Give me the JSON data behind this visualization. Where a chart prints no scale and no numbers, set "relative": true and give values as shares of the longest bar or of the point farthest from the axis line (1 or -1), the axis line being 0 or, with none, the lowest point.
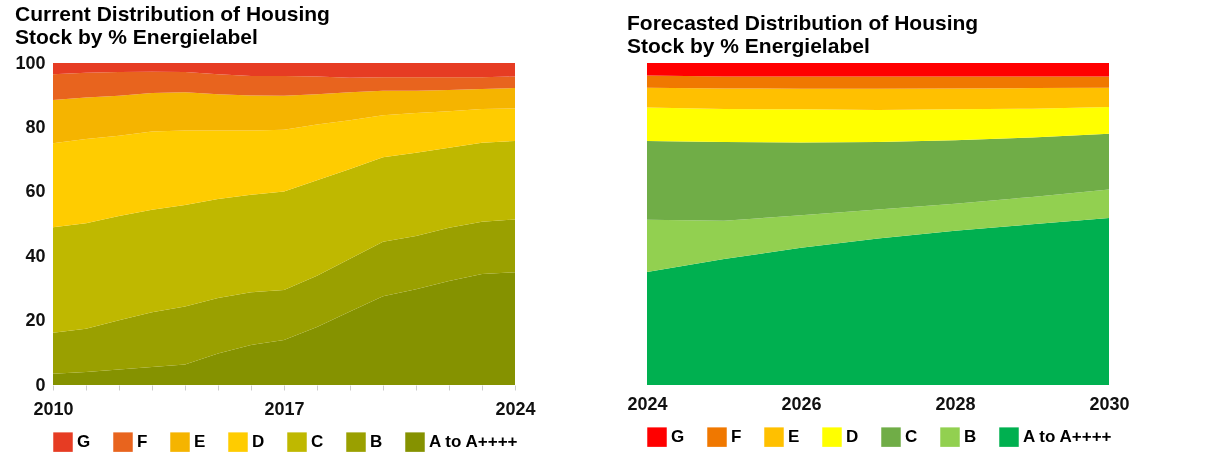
{
  "chart_data": [
    {
      "type": "area",
      "stacked": true,
      "title": "Current Distribution of Housing\nStock by % Energielabel",
      "legend": "bottom",
      "grid": false,
      "x": [
        2010,
        2011,
        2012,
        2013,
        2014,
        2015,
        2016,
        2017,
        2018,
        2019,
        2020,
        2021,
        2022,
        2023,
        2024
      ],
      "xlim": [
        2010,
        2024
      ],
      "xticks": [
        2010,
        {
          "value": 2011,
          "label": null
        },
        {
          "value": 2012,
          "label": null
        },
        {
          "value": 2013,
          "label": null
        },
        {
          "value": 2014,
          "label": null
        },
        {
          "value": 2015,
          "label": null
        },
        {
          "value": 2016,
          "label": null
        },
        2017,
        {
          "value": 2018,
          "label": null
        },
        {
          "value": 2019,
          "label": null
        },
        {
          "value": 2020,
          "label": null
        },
        {
          "value": 2021,
          "label": null
        },
        {
          "value": 2022,
          "label": null
        },
        {
          "value": 2023,
          "label": null
        },
        2024
      ],
      "ylim": [
        0,
        100
      ],
      "yticks": [
        0,
        20,
        40,
        60,
        80,
        100
      ],
      "series": [
        {
          "name": "A to A++++",
          "color": "#859200",
          "values": [
            3.5,
            4.0,
            4.8,
            5.6,
            6.4,
            9.8,
            12.4,
            14.0,
            18.0,
            22.8,
            27.6,
            29.7,
            32.3,
            34.5,
            35.0
          ]
        },
        {
          "name": "B",
          "color": "#9aa000",
          "values": [
            12.7,
            13.5,
            15.3,
            17.0,
            18.0,
            17.2,
            16.4,
            15.5,
            15.9,
            16.4,
            16.9,
            16.6,
            16.5,
            16.2,
            16.4
          ]
        },
        {
          "name": "C",
          "color": "#bfb800",
          "values": [
            32.8,
            32.7,
            32.4,
            31.8,
            31.5,
            30.8,
            30.3,
            30.6,
            29.7,
            27.9,
            26.2,
            25.8,
            24.9,
            24.5,
            24.4
          ]
        },
        {
          "name": "D",
          "color": "#ffcc00",
          "values": [
            26.1,
            26.2,
            24.9,
            24.3,
            23.1,
            21.2,
            19.9,
            19.2,
            17.3,
            15.1,
            13.1,
            12.4,
            11.3,
            10.5,
            10.1
          ]
        },
        {
          "name": "E",
          "color": "#f5b400",
          "values": [
            13.4,
            12.9,
            12.4,
            12.0,
            11.9,
            11.3,
            10.9,
            10.5,
            9.4,
            8.7,
            7.6,
            6.9,
            6.6,
            6.2,
            6.3
          ]
        },
        {
          "name": "F",
          "color": "#e8641e",
          "values": [
            8.0,
            7.7,
            7.4,
            6.6,
            6.3,
            6.2,
            6.1,
            6.2,
            5.5,
            4.5,
            4.2,
            4.2,
            4.0,
            3.7,
            3.6
          ]
        },
        {
          "name": "G",
          "color": "#e63c23",
          "values": [
            3.5,
            3.0,
            2.8,
            2.7,
            2.8,
            3.5,
            4.0,
            4.0,
            4.2,
            4.6,
            4.4,
            4.4,
            4.4,
            4.4,
            4.2
          ]
        }
      ]
    },
    {
      "type": "area",
      "stacked": true,
      "relative": true,
      "title": "Forecasted Distribution of Housing\nStock by % Energielabel",
      "legend": "bottom",
      "grid": false,
      "x": [
        2024,
        2025,
        2026,
        2027,
        2028,
        2029,
        2030
      ],
      "xlim": [
        2024,
        2030
      ],
      "xticks": [
        2024,
        2026,
        2028,
        2030
      ],
      "series": [
        {
          "name": "A to A++++",
          "color": "#00b050",
          "values": [
            0.351,
            0.391,
            0.426,
            0.455,
            0.479,
            0.499,
            0.519
          ]
        },
        {
          "name": "B",
          "color": "#92d050",
          "values": [
            0.162,
            0.119,
            0.101,
            0.09,
            0.084,
            0.085,
            0.088
          ]
        },
        {
          "name": "C",
          "color": "#70ad47",
          "values": [
            0.245,
            0.245,
            0.226,
            0.21,
            0.197,
            0.185,
            0.173
          ]
        },
        {
          "name": "D",
          "color": "#ffff00",
          "values": [
            0.104,
            0.102,
            0.103,
            0.099,
            0.096,
            0.089,
            0.083
          ]
        },
        {
          "name": "E",
          "color": "#ffc000",
          "values": [
            0.061,
            0.064,
            0.064,
            0.066,
            0.065,
            0.064,
            0.06
          ]
        },
        {
          "name": "F",
          "color": "#f07800",
          "values": [
            0.038,
            0.037,
            0.038,
            0.038,
            0.037,
            0.036,
            0.035
          ]
        },
        {
          "name": "G",
          "color": "#ff0000",
          "values": [
            0.039,
            0.042,
            0.042,
            0.042,
            0.042,
            0.042,
            0.042
          ]
        }
      ]
    }
  ]
}
